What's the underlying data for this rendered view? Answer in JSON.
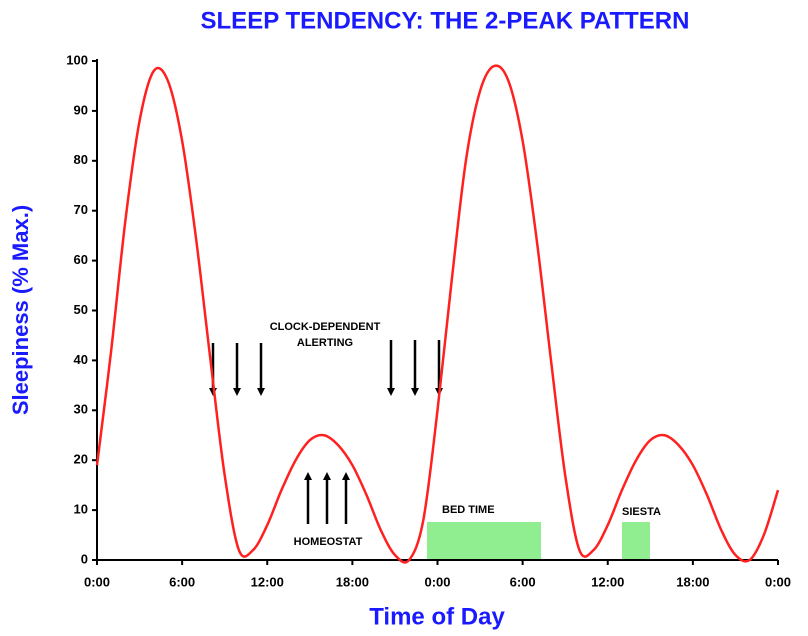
{
  "chart_data": {
    "type": "line",
    "title": "SLEEP TENDENCY: THE 2-PEAK PATTERN",
    "x_label": "Time of Day",
    "y_label": "Sleepiness (% Max.)",
    "x": [
      0,
      1,
      2,
      3,
      4,
      5,
      6,
      7,
      8,
      9,
      10,
      11,
      12,
      13,
      14,
      15,
      16,
      17,
      18,
      19,
      20,
      21,
      22,
      23,
      24,
      25,
      26,
      27,
      28,
      29,
      30,
      31,
      32,
      33,
      34,
      35,
      36,
      37,
      38,
      39,
      40,
      41,
      42,
      43,
      44,
      45,
      46,
      47,
      48
    ],
    "series": [
      {
        "name": "Sleep tendency",
        "color": "#ff2020",
        "values": [
          19,
          42,
          68,
          88,
          98,
          96,
          84,
          64,
          40,
          17,
          2,
          2,
          7,
          14,
          20,
          24,
          25,
          23,
          19,
          13,
          6,
          1,
          0,
          8,
          30,
          56,
          80,
          94,
          99,
          96,
          84,
          64,
          40,
          17,
          2,
          2,
          7,
          14,
          20,
          24,
          25,
          23,
          19,
          13,
          6,
          1,
          0,
          5,
          14
        ]
      }
    ],
    "xlim": [
      0,
      48
    ],
    "xticks": [
      {
        "value": 0,
        "label": "0:00"
      },
      {
        "value": 6,
        "label": "6:00"
      },
      {
        "value": 12,
        "label": "12:00"
      },
      {
        "value": 18,
        "label": "18:00"
      },
      {
        "value": 24,
        "label": "0:00"
      },
      {
        "value": 30,
        "label": "6:00"
      },
      {
        "value": 36,
        "label": "12:00"
      },
      {
        "value": 42,
        "label": "18:00"
      },
      {
        "value": 48,
        "label": "0:00"
      }
    ],
    "ylim": [
      0,
      100
    ],
    "yticks": [
      0,
      10,
      20,
      30,
      40,
      50,
      60,
      70,
      80,
      90,
      100
    ],
    "annotations": {
      "alerting": [
        "CLOCK-DEPENDENT",
        "ALERTING"
      ],
      "homeostat": "HOMEOSTAT",
      "bed_time": "BED TIME",
      "siesta": "SIESTA"
    }
  }
}
